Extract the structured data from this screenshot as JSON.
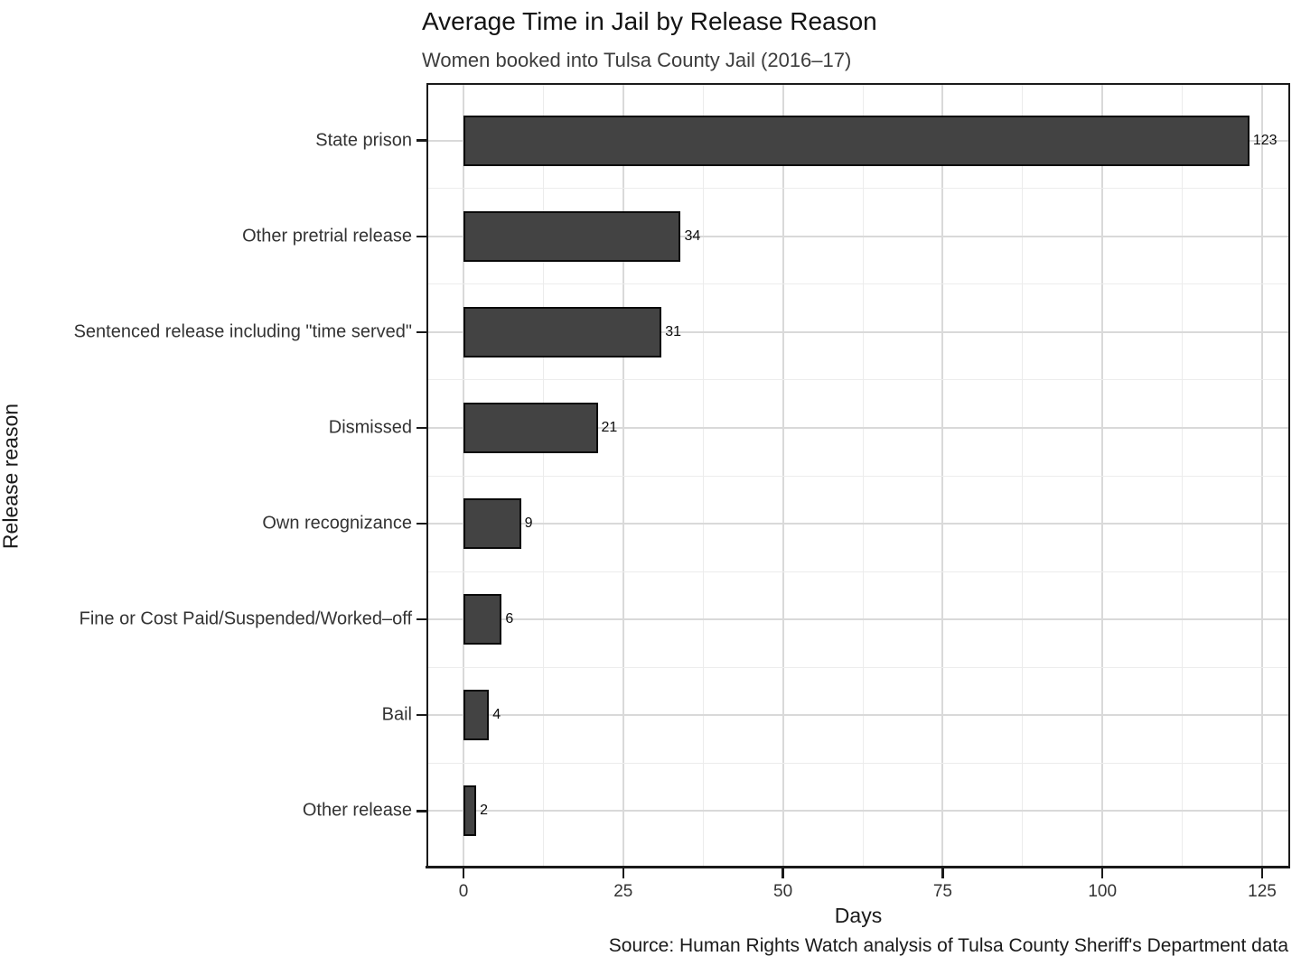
{
  "chart_data": {
    "type": "bar",
    "orientation": "horizontal",
    "title": "Average Time in Jail by Release Reason",
    "subtitle": "Women booked into Tulsa County Jail (2016–17)",
    "caption": "Source: Human Rights Watch analysis of Tulsa County Sheriff's Department data",
    "xlabel": "Days",
    "ylabel": "Release reason",
    "categories": [
      "State prison",
      "Other pretrial release",
      "Sentenced release including \"time served\"",
      "Dismissed",
      "Own recognizance",
      "Fine or Cost Paid/Suspended/Worked–off",
      "Bail",
      "Other release"
    ],
    "values": [
      123,
      34,
      31,
      21,
      9,
      6,
      4,
      2
    ],
    "xlim": [
      0,
      125
    ],
    "xticks": [
      0,
      25,
      50,
      75,
      100,
      125
    ],
    "xminor_ticks": [
      12.5,
      37.5,
      62.5,
      87.5,
      112.5
    ],
    "grid": "major and minor, light gray",
    "legend_position": "none",
    "colors": {
      "bar_fill": "#434343",
      "bar_border": "#0a0a0a",
      "grid_major": "#d9d9d9",
      "grid_minor": "#ececec",
      "panel_border": "#1a1a1a",
      "text": "#1a1a1a"
    }
  }
}
